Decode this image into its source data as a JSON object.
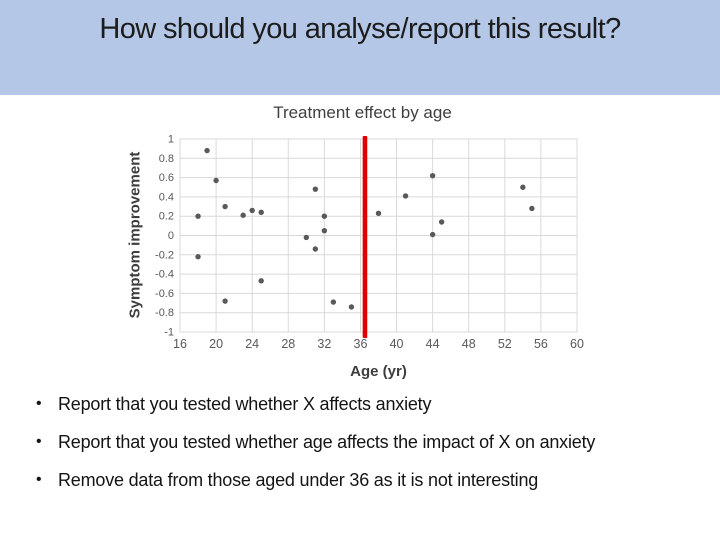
{
  "slide": {
    "title": "How should you analyse/report this result?",
    "title_band_color": "#b4c7e7"
  },
  "chart_data": {
    "type": "scatter",
    "title": "Treatment effect by age",
    "xlabel": "Age (yr)",
    "ylabel": "Symptom improvement",
    "xlim": [
      16,
      60
    ],
    "ylim": [
      -1,
      1
    ],
    "grid": true,
    "legend": "none",
    "x_tick_labels": [
      "16",
      "20",
      "24",
      "28",
      "32",
      "36",
      "40",
      "44",
      "48",
      "52",
      "56",
      "60"
    ],
    "y_tick_labels": [
      "1",
      "0.8",
      "0.6",
      "0.4",
      "0.2",
      "0",
      "-0.2",
      "-0.4",
      "-0.6",
      "-0.8",
      "-1"
    ],
    "points": [
      {
        "x": 18,
        "y": 0.2
      },
      {
        "x": 18,
        "y": -0.22
      },
      {
        "x": 19,
        "y": 0.88
      },
      {
        "x": 20,
        "y": 0.57
      },
      {
        "x": 21,
        "y": 0.3
      },
      {
        "x": 21,
        "y": -0.68
      },
      {
        "x": 23,
        "y": 0.21
      },
      {
        "x": 24,
        "y": 0.26
      },
      {
        "x": 25,
        "y": 0.24
      },
      {
        "x": 25,
        "y": -0.47
      },
      {
        "x": 30,
        "y": -0.02
      },
      {
        "x": 31,
        "y": 0.48
      },
      {
        "x": 31,
        "y": -0.14
      },
      {
        "x": 32,
        "y": 0.2
      },
      {
        "x": 32,
        "y": 0.05
      },
      {
        "x": 33,
        "y": -0.69
      },
      {
        "x": 35,
        "y": -0.74
      },
      {
        "x": 38,
        "y": 0.23
      },
      {
        "x": 41,
        "y": 0.41
      },
      {
        "x": 44,
        "y": 0.62
      },
      {
        "x": 44,
        "y": 0.01
      },
      {
        "x": 45,
        "y": 0.14
      },
      {
        "x": 54,
        "y": 0.5
      },
      {
        "x": 55,
        "y": 0.28
      }
    ],
    "vline": {
      "x": 36.5,
      "color": "#e00000"
    },
    "marker_color": "#595959",
    "gridline_color": "#d9d9d9",
    "tick_label_color": "#595959"
  },
  "bullets": [
    "Report that you tested whether X affects anxiety",
    "Report that you tested whether age affects the impact of X on anxiety",
    "Remove data from those aged under 36 as it is not interesting"
  ]
}
